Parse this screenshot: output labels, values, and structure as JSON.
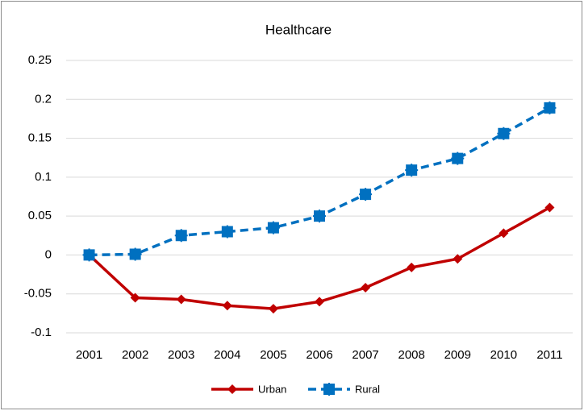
{
  "chart_data": {
    "type": "line",
    "title": "Healthcare",
    "categories": [
      "2001",
      "2002",
      "2003",
      "2004",
      "2005",
      "2006",
      "2007",
      "2008",
      "2009",
      "2010",
      "2011"
    ],
    "series": [
      {
        "name": "Urban",
        "color": "#c00000",
        "values": [
          0,
          -0.055,
          -0.057,
          -0.065,
          -0.069,
          -0.06,
          -0.042,
          -0.016,
          -0.005,
          0.028,
          0.061
        ]
      },
      {
        "name": "Rural",
        "color": "#0070c0",
        "values": [
          0,
          0.001,
          0.025,
          0.03,
          0.035,
          0.05,
          0.078,
          0.109,
          0.124,
          0.156,
          0.189
        ]
      }
    ],
    "ylim": [
      -0.1,
      0.25
    ],
    "yticks": [
      -0.1,
      -0.05,
      0,
      0.05,
      0.1,
      0.15,
      0.2,
      0.25
    ],
    "grid": true,
    "legend": "bottom"
  }
}
